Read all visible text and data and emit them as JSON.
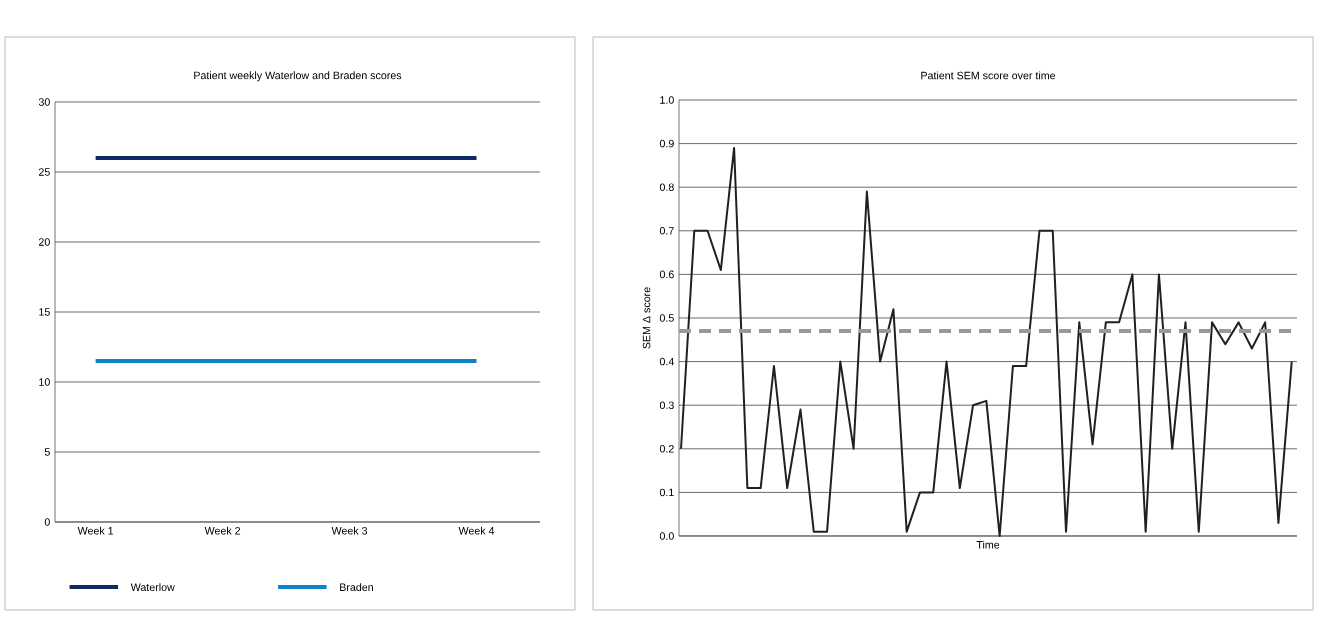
{
  "chart_data": [
    {
      "type": "line",
      "title": "Patient weekly Waterlow and Braden scores",
      "categories": [
        "Week 1",
        "Week 2",
        "Week 3",
        "Week 4"
      ],
      "series": [
        {
          "name": "Waterlow",
          "color": "#0d2b62",
          "values": [
            26,
            26,
            26,
            26
          ]
        },
        {
          "name": "Braden",
          "color": "#0a86c8",
          "values": [
            11.5,
            11.5,
            11.5,
            11.5
          ]
        }
      ],
      "ylim": [
        0,
        30
      ],
      "yticks": [
        0,
        5,
        10,
        15,
        20,
        25,
        30
      ],
      "grid": "y",
      "legend": "bottom"
    },
    {
      "type": "line",
      "title": "Patient SEM score over time",
      "xlabel": "Time",
      "ylabel": "SEM Δ score",
      "categories": [
        null,
        null,
        null,
        null,
        null,
        null,
        null,
        null,
        null,
        null,
        null,
        null,
        null,
        null,
        null,
        null,
        null,
        null,
        null,
        null,
        null,
        null,
        null,
        null,
        null,
        null,
        null,
        null,
        null,
        null,
        null,
        null,
        null,
        null,
        null,
        null,
        null,
        null,
        null,
        null,
        null,
        null,
        null,
        null,
        null,
        null,
        null
      ],
      "series": [
        {
          "color": "#231f20",
          "values": [
            0.2,
            0.7,
            0.7,
            0.61,
            0.89,
            0.11,
            0.11,
            0.39,
            0.11,
            0.29,
            0.01,
            0.01,
            0.4,
            0.2,
            0.79,
            0.4,
            0.52,
            0.01,
            0.1,
            0.1,
            0.4,
            0.11,
            0.3,
            0.31,
            0.0,
            0.39,
            0.39,
            0.7,
            0.7,
            0.01,
            0.49,
            0.21,
            0.49,
            0.49,
            0.6,
            0.01,
            0.6,
            0.2,
            0.49,
            0.01,
            0.49,
            0.44,
            0.49,
            0.43,
            0.49,
            0.03,
            0.4
          ]
        }
      ],
      "ylim": [
        0,
        1.0
      ],
      "yticks": [
        {
          "value": 0,
          "label": "0.0"
        },
        0.1,
        0.2,
        0.3,
        0.4,
        0.5,
        0.6,
        0.7,
        0.8,
        0.9,
        {
          "value": 1,
          "label": "1.0"
        }
      ],
      "ref_lines": [
        {
          "axis": "y",
          "value": 0.47,
          "color": "#999999",
          "line_style": "dashed"
        }
      ],
      "grid": "y",
      "tick_labels": "y"
    }
  ]
}
